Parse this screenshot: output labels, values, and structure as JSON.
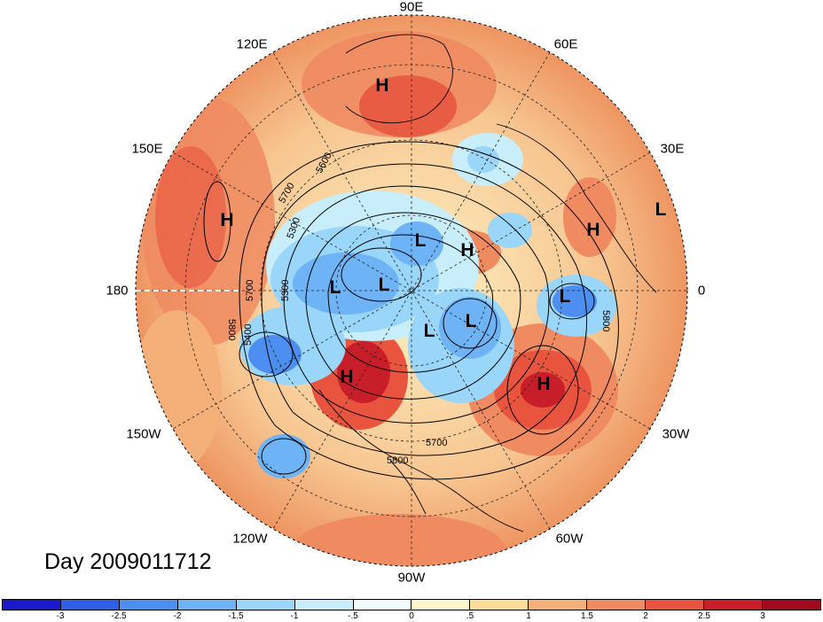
{
  "title": "Day 2009011712",
  "longitude_labels": [
    "90E",
    "60E",
    "30E",
    "0",
    "30W",
    "60W",
    "90W",
    "120W",
    "150W",
    "180",
    "150E",
    "120E"
  ],
  "contour_labels": [
    "5600",
    "5700",
    "5300",
    "5700",
    "5300",
    "5400",
    "5800",
    "5700",
    "5800",
    "5800"
  ],
  "pressure_centers": [
    "H",
    "H",
    "L",
    "L",
    "L",
    "L",
    "H",
    "L",
    "L",
    "L",
    "H",
    "H",
    "H"
  ],
  "colorbar": {
    "ticks": [
      "-3",
      "-2.5",
      "-2",
      "-1.5",
      "-1",
      "-.5",
      "0",
      ".5",
      "1",
      "1.5",
      "2",
      "2.5",
      "3"
    ],
    "colors": [
      "#1a1acc",
      "#2e5fe6",
      "#4d8ff0",
      "#6eb3f5",
      "#9ad6fa",
      "#c8eefc",
      "#eefcfc",
      "#fdf5cc",
      "#fbdc9b",
      "#f5b07a",
      "#f08a60",
      "#e8543e",
      "#c81e2a",
      "#a00a1e"
    ]
  }
}
